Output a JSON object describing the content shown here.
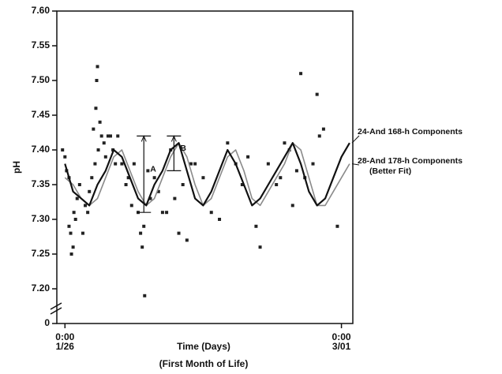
{
  "chart_data": {
    "type": "line",
    "ylabel": "pH",
    "xlabel": "Time (Days)",
    "xsublabel": "(First Month of Life)",
    "xlim": [
      -1,
      35.4
    ],
    "xticks": [
      {
        "value": 0,
        "label": "0:00"
      },
      {
        "value": 34,
        "label": "0:00"
      }
    ],
    "xtick_dates": [
      "1/26",
      "3/01"
    ],
    "ylim": [
      0,
      7.6
    ],
    "y_break": [
      0,
      7.15
    ],
    "yticks": [
      {
        "value": 0,
        "label": "0"
      },
      {
        "value": 7.2,
        "label": "7.20"
      },
      7.25,
      {
        "value": 7.3,
        "label": "7.30"
      },
      7.35,
      {
        "value": 7.4,
        "label": "7.40"
      },
      7.45,
      {
        "value": 7.5,
        "label": "7.50"
      },
      7.55,
      {
        "value": 7.6,
        "label": "7.60"
      }
    ],
    "grid": false,
    "x": [
      0,
      1,
      2,
      3,
      4,
      5,
      6,
      7,
      8,
      9,
      10,
      11,
      12,
      13,
      14,
      15,
      16,
      17,
      18,
      19,
      20,
      21,
      22,
      23,
      24,
      25,
      26,
      27,
      28,
      29,
      30,
      31,
      32,
      33,
      34,
      35
    ],
    "series": [
      {
        "name": "24-And 168-h Components",
        "color": "#111111",
        "values": [
          7.38,
          7.34,
          7.33,
          7.32,
          7.35,
          7.37,
          7.4,
          7.39,
          7.36,
          7.33,
          7.32,
          7.35,
          7.37,
          7.4,
          7.41,
          7.37,
          7.33,
          7.32,
          7.34,
          7.37,
          7.4,
          7.38,
          7.35,
          7.32,
          7.33,
          7.35,
          7.37,
          7.39,
          7.41,
          7.38,
          7.34,
          7.32,
          7.33,
          7.36,
          7.39,
          7.41
        ]
      },
      {
        "name": "28-And 178-h Components",
        "note": "(Better Fit)",
        "color": "#8a8a8a",
        "values": [
          7.36,
          7.35,
          7.33,
          7.32,
          7.33,
          7.36,
          7.39,
          7.4,
          7.37,
          7.34,
          7.32,
          7.33,
          7.36,
          7.39,
          7.41,
          7.39,
          7.35,
          7.32,
          7.33,
          7.36,
          7.39,
          7.4,
          7.37,
          7.33,
          7.32,
          7.34,
          7.36,
          7.38,
          7.41,
          7.4,
          7.36,
          7.32,
          7.32,
          7.34,
          7.36,
          7.38
        ]
      }
    ],
    "scatter": {
      "color": "#222222",
      "x": [
        -0.3,
        0,
        0.2,
        0.5,
        0.5,
        0.7,
        0.8,
        1,
        1.1,
        1.3,
        1.5,
        1.8,
        2.2,
        2.5,
        2.8,
        3,
        3.3,
        3.5,
        3.7,
        3.8,
        3.9,
        4.0,
        4.1,
        4.3,
        4.5,
        4.8,
        5.0,
        5.3,
        5.6,
        5.9,
        6.2,
        6.5,
        7.0,
        7.5,
        7.8,
        8.2,
        8.5,
        9.0,
        9.3,
        9.5,
        9.7,
        9.8,
        10.2,
        10.5,
        11,
        11.5,
        12,
        12.5,
        13,
        13.5,
        14,
        14.5,
        15,
        15.5,
        16,
        17,
        18,
        19,
        20,
        21,
        21.8,
        22.5,
        23.5,
        24,
        25,
        26,
        26.5,
        27,
        27.6,
        28,
        28.5,
        29,
        29.5,
        30.5,
        31,
        31.3,
        31.8,
        33.5
      ],
      "y": [
        7.4,
        7.39,
        7.37,
        7.36,
        7.29,
        7.28,
        7.25,
        7.26,
        7.31,
        7.3,
        7.33,
        7.35,
        7.28,
        7.32,
        7.31,
        7.34,
        7.36,
        7.43,
        7.38,
        7.46,
        7.5,
        7.52,
        7.4,
        7.44,
        7.42,
        7.41,
        7.39,
        7.42,
        7.42,
        7.4,
        7.38,
        7.42,
        7.38,
        7.35,
        7.36,
        7.32,
        7.38,
        7.31,
        7.28,
        7.26,
        7.29,
        7.19,
        7.37,
        7.33,
        7.36,
        7.34,
        7.31,
        7.31,
        7.4,
        7.33,
        7.28,
        7.35,
        7.27,
        7.38,
        7.38,
        7.36,
        7.31,
        7.3,
        7.41,
        7.38,
        7.35,
        7.39,
        7.29,
        7.26,
        7.38,
        7.35,
        7.36,
        7.41,
        7.4,
        7.32,
        7.37,
        7.51,
        7.36,
        7.38,
        7.48,
        7.42,
        7.43,
        7.29
      ]
    },
    "ranges": [
      {
        "label": "A",
        "x": 9.7,
        "y": [
          7.31,
          7.42
        ]
      },
      {
        "label": "B",
        "x": 13.4,
        "y": [
          7.37,
          7.42
        ]
      }
    ]
  }
}
